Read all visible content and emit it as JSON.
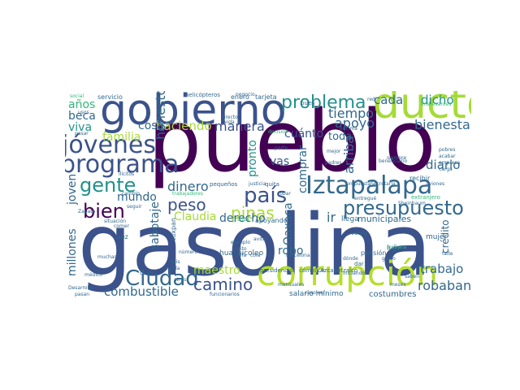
{
  "palette": {
    "dark_purple": "#440154",
    "indigo": "#3b528b",
    "blue": "#31688e",
    "teal": "#21918c",
    "green": "#35b779",
    "lime": "#a5db36",
    "yellow": "#b5de2b"
  },
  "words": [
    {
      "text": "pueblo",
      "color": "#440154"
    },
    {
      "text": "gasolina",
      "color": "#3b528b"
    },
    {
      "text": "gobierno",
      "color": "#3b528b"
    },
    {
      "text": "corrupción",
      "color": "#b5de2b"
    },
    {
      "text": "ducto",
      "color": "#a5db36"
    },
    {
      "text": "Iztapalapa",
      "color": "#31688e"
    },
    {
      "text": "programa",
      "color": "#3b528b"
    },
    {
      "text": "jóvenes",
      "color": "#3b528b"
    },
    {
      "text": "problema",
      "color": "#21918c"
    },
    {
      "text": "presupuesto",
      "color": "#31688e"
    },
    {
      "text": "gente",
      "color": "#21918c"
    },
    {
      "text": "país",
      "color": "#3b528b"
    },
    {
      "text": "Ciudad",
      "color": "#31688e"
    },
    {
      "text": "bien",
      "color": "#440154"
    },
    {
      "text": "camino",
      "color": "#3b528b"
    },
    {
      "text": "peso",
      "color": "#3b528b"
    },
    {
      "text": "pipas",
      "color": "#a5db36"
    },
    {
      "text": "combustible",
      "color": "#31688e"
    },
    {
      "text": "robaban",
      "color": "#31688e"
    },
    {
      "text": "trabajo",
      "color": "#31688e"
    },
    {
      "text": "diario",
      "color": "#31688e"
    },
    {
      "text": "bienestar",
      "color": "#31688e"
    },
    {
      "text": "apoyo",
      "color": "#31688e"
    },
    {
      "text": "tiempo",
      "color": "#31688e"
    },
    {
      "text": "manera",
      "color": "#3b528b"
    },
    {
      "text": "haciendo",
      "color": "#a5db36"
    },
    {
      "text": "cosa",
      "color": "#31688e"
    },
    {
      "text": "dicho",
      "color": "#21918c"
    },
    {
      "text": "cada",
      "color": "#31688e"
    },
    {
      "text": "años",
      "color": "#35b779"
    },
    {
      "text": "beca",
      "color": "#31688e"
    },
    {
      "text": "viva",
      "color": "#21918c"
    },
    {
      "text": "familia",
      "color": "#a5db36"
    },
    {
      "text": "mundo",
      "color": "#31688e"
    },
    {
      "text": "dinero",
      "color": "#31688e"
    },
    {
      "text": "Claudia",
      "color": "#a5db36"
    },
    {
      "text": "maestro",
      "color": "#a5db36"
    },
    {
      "text": "derecho",
      "color": "#31688e"
    },
    {
      "text": "Oaxaca",
      "color": "#31688e"
    },
    {
      "text": "robo",
      "color": "#31688e"
    },
    {
      "text": "millones",
      "color": "#31688e"
    },
    {
      "text": "joven",
      "color": "#31688e"
    },
    {
      "text": "crédito",
      "color": "#31688e"
    },
    {
      "text": "cuánto",
      "color": "#3b528b"
    },
    {
      "text": "vas",
      "color": "#3b528b"
    },
    {
      "text": "comprar",
      "color": "#31688e"
    },
    {
      "text": "arriba",
      "color": "#31688e"
    },
    {
      "text": "toda",
      "color": "#31688e"
    },
    {
      "text": "honesto",
      "color": "#31688e"
    },
    {
      "text": "pronto",
      "color": "#21918c"
    },
    {
      "text": "sabotaje",
      "color": "#31688e"
    },
    {
      "text": "municipales",
      "color": "#31688e"
    },
    {
      "text": "ir",
      "color": "#31688e"
    },
    {
      "text": "llega",
      "color": "#31688e"
    },
    {
      "text": "costumbres",
      "color": "#31688e"
    },
    {
      "text": "tuxpan",
      "color": "#31688e"
    },
    {
      "text": "huachicoleo",
      "color": "#31688e"
    },
    {
      "text": "salario mínimo",
      "color": "#31688e"
    },
    {
      "text": "presidencial",
      "color": "#31688e"
    },
    {
      "text": "cómplice",
      "color": "#31688e"
    },
    {
      "text": "Azcapotzalco",
      "color": "#31688e"
    },
    {
      "text": "mujer",
      "color": "#31688e"
    },
    {
      "text": "lujo",
      "color": "#31688e"
    },
    {
      "text": "pensión",
      "color": "#31688e"
    },
    {
      "text": "servicio",
      "color": "#31688e"
    },
    {
      "text": "helicópteros",
      "color": "#31688e"
    },
    {
      "text": "enero",
      "color": "#31688e"
    },
    {
      "text": "tarjeta",
      "color": "#31688e"
    },
    {
      "text": "red",
      "color": "#31688e"
    },
    {
      "text": "interesantes",
      "color": "#35b779"
    },
    {
      "text": "pequeños",
      "color": "#31688e"
    },
    {
      "text": "quita",
      "color": "#31688e"
    },
    {
      "text": "apoyando",
      "color": "#31688e"
    },
    {
      "text": "recibir",
      "color": "#31688e"
    },
    {
      "text": "extranjero",
      "color": "#35b779"
    },
    {
      "text": "pobres",
      "color": "#31688e"
    },
    {
      "text": "acabar",
      "color": "#31688e"
    },
    {
      "text": "empresa",
      "color": "#31688e"
    },
    {
      "text": "carga",
      "color": "#31688e"
    },
    {
      "text": "aviones",
      "color": "#31688e"
    },
    {
      "text": "Sheinbaum",
      "color": "#31688e"
    },
    {
      "text": "Secretaría",
      "color": "#31688e"
    },
    {
      "text": "usos",
      "color": "#31688e"
    },
    {
      "text": "social",
      "color": "#35b779"
    },
    {
      "text": "cambio",
      "color": "#31688e"
    },
    {
      "text": "vez",
      "color": "#31688e"
    },
    {
      "text": "tanda",
      "color": "#31688e"
    },
    {
      "text": "médico",
      "color": "#31688e"
    },
    {
      "text": "muchas",
      "color": "#31688e"
    },
    {
      "text": "atrás",
      "color": "#31688e"
    },
    {
      "text": "dueño",
      "color": "#31688e"
    },
    {
      "text": "seis",
      "color": "#31688e"
    },
    {
      "text": "robar",
      "color": "#31688e"
    },
    {
      "text": "avitar",
      "color": "#31688e"
    },
    {
      "text": "pasar",
      "color": "#31688e"
    },
    {
      "text": "repito",
      "color": "#31688e"
    },
    {
      "text": "jefa",
      "color": "#31688e"
    },
    {
      "text": "ejemplo",
      "color": "#31688e"
    },
    {
      "text": "justicia",
      "color": "#31688e"
    },
    {
      "text": "negocio",
      "color": "#31688e"
    },
    {
      "text": "buen",
      "color": "#31688e"
    },
    {
      "text": "falte",
      "color": "#31688e"
    },
    {
      "text": "saben",
      "color": "#31688e"
    },
    {
      "text": "gusto",
      "color": "#31688e"
    },
    {
      "text": "dar",
      "color": "#31688e"
    },
    {
      "text": "venta",
      "color": "#31688e"
    },
    {
      "text": "resolver",
      "color": "#31688e"
    },
    {
      "text": "meses",
      "color": "#31688e"
    },
    {
      "text": "siempre",
      "color": "#31688e"
    },
    {
      "text": "situación",
      "color": "#31688e"
    },
    {
      "text": "trabajadores",
      "color": "#35b779"
    },
    {
      "text": "mensuales",
      "color": "#31688e"
    },
    {
      "text": "funcionarios",
      "color": "#31688e"
    },
    {
      "text": "pasan",
      "color": "#31688e"
    },
    {
      "text": "comer",
      "color": "#31688e"
    },
    {
      "text": "entregué",
      "color": "#31688e"
    },
    {
      "text": "propuesta",
      "color": "#31688e"
    },
    {
      "text": "padres",
      "color": "#31688e"
    },
    {
      "text": "parte",
      "color": "#31688e"
    },
    {
      "text": "mejor",
      "color": "#31688e"
    },
    {
      "text": "decisión",
      "color": "#35b779"
    },
    {
      "text": "vida",
      "color": "#31688e"
    },
    {
      "text": "directo",
      "color": "#31688e"
    },
    {
      "text": "encima",
      "color": "#31688e"
    },
    {
      "text": "beneficiario",
      "color": "#31688e"
    },
    {
      "text": "ilícitos",
      "color": "#31688e"
    },
    {
      "text": "Zapata",
      "color": "#31688e"
    },
    {
      "text": "Desarrollo",
      "color": "#31688e"
    },
    {
      "text": "número",
      "color": "#31688e"
    },
    {
      "text": "altos",
      "color": "#35b779"
    },
    {
      "text": "seguir",
      "color": "#31688e"
    },
    {
      "text": "cola",
      "color": "#31688e"
    },
    {
      "text": "barcelona",
      "color": "#31688e"
    },
    {
      "text": "dónde",
      "color": "#31688e"
    },
    {
      "text": "iniciando",
      "color": "#31688e"
    },
    {
      "text": "mañana",
      "color": "#35b779"
    }
  ]
}
